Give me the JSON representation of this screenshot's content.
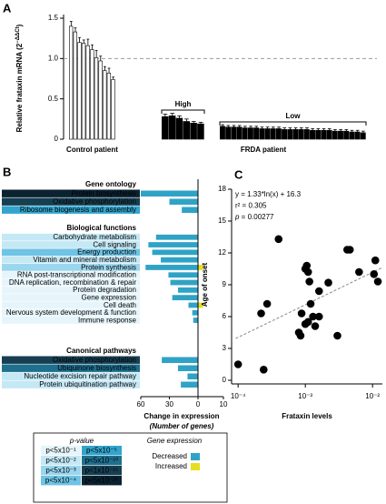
{
  "chart_data": [
    {
      "type": "bar",
      "panel": "A",
      "ylabel": [
        "Relative frataxin mRNA (2",
        "−ΔΔCt",
        ")"
      ],
      "ylim": [
        0,
        1.5
      ],
      "yticks": [
        0,
        0.5,
        {
          "value": 1,
          "label": "1.0"
        },
        1.5
      ],
      "reference_line": 1,
      "groups": [
        {
          "name": "Control patient",
          "color": "#ffffff",
          "values": [
            1.4,
            1.33,
            1.2,
            1.19,
            1.16,
            1.11,
            1.01,
            0.97,
            0.85,
            0.82,
            0.74
          ],
          "errors": [
            0.06,
            0.05,
            0.06,
            0.04,
            0.08,
            0.06,
            0.09,
            0.06,
            0.05,
            0.06,
            0.03
          ]
        },
        {
          "name": "High",
          "color": "#000000",
          "values": [
            0.28,
            0.29,
            0.26,
            0.22,
            0.2,
            0.19
          ],
          "errors": [
            0.03,
            0.03,
            0.03,
            0.03,
            0.02,
            0.02
          ]
        },
        {
          "name": "Low",
          "color": "#000000",
          "values": [
            0.16,
            0.15,
            0.15,
            0.15,
            0.14,
            0.14,
            0.14,
            0.13,
            0.13,
            0.13,
            0.13,
            0.12,
            0.12,
            0.12,
            0.12,
            0.12,
            0.11,
            0.11,
            0.11,
            0.11,
            0.1,
            0.1,
            0.1,
            0.09,
            0.09,
            0.08
          ],
          "errors": [
            0.02,
            0.02,
            0.02,
            0.02,
            0.02,
            0.02,
            0.02,
            0.02,
            0.02,
            0.02,
            0.02,
            0.02,
            0.02,
            0.02,
            0.02,
            0.02,
            0.02,
            0.02,
            0.02,
            0.02,
            0.02,
            0.02,
            0.02,
            0.02,
            0.02,
            0.02
          ]
        }
      ],
      "patient_label": "FRDA patient"
    },
    {
      "type": "diverging-bar",
      "panel": "B",
      "series": [
        {
          "name": "Decreased",
          "color": "#2fa3c6"
        },
        {
          "name": "Increased",
          "color": "#e6df1f"
        }
      ],
      "sections": [
        {
          "title": "Gene ontology",
          "rows": [
            {
              "label": "Protein biosynthesis",
              "color": "#0b2231",
              "values": [
                60,
                null
              ]
            },
            {
              "label": "Oxidative phosphorylation",
              "color": "#173f52",
              "values": [
                30,
                null
              ]
            },
            {
              "label": "Ribosome biogenesis and assembly",
              "color": "#31a5cd",
              "values": [
                17,
                null
              ]
            }
          ]
        },
        {
          "title": "Biological functions",
          "rows": [
            {
              "label": "Carbohydrate metabolism",
              "color": "#c5e8f5",
              "values": [
                44,
                null
              ]
            },
            {
              "label": "Cell signaling",
              "color": "#c5e8f5",
              "values": [
                52,
                null
              ]
            },
            {
              "label": "Energy production",
              "color": "#6fc3e4",
              "values": [
                48,
                null
              ]
            },
            {
              "label": "Vitamin and mineral metabolism",
              "color": "#c5e8f5",
              "values": [
                39,
                null
              ]
            },
            {
              "label": "Protein synthesis",
              "color": "#9ad6ee",
              "values": [
                55,
                2
              ]
            },
            {
              "label": "RNA post-transcriptional modification",
              "color": "#e6f5fb",
              "values": [
                31,
                null
              ]
            },
            {
              "label": "DNA replication, recombination & repair",
              "color": "#e6f5fb",
              "values": [
                29,
                null
              ]
            },
            {
              "label": "Protein degradation",
              "color": "#e6f5fb",
              "values": [
                21,
                null
              ]
            },
            {
              "label": "Gene expression",
              "color": "#e6f5fb",
              "values": [
                27,
                null
              ]
            },
            {
              "label": "Cell death",
              "color": "#e6f5fb",
              "values": [
                10,
                2
              ]
            },
            {
              "label": "Nervous system development & function",
              "color": "#e6f5fb",
              "values": [
                6,
                null
              ]
            },
            {
              "label": "Immune response",
              "color": "#e6f5fb",
              "values": [
                5,
                null
              ]
            }
          ]
        },
        {
          "title": "Canonical pathways",
          "rows": [
            {
              "label": "Oxidative phosphorylation",
              "color": "#173f52",
              "values": [
                38,
                null
              ]
            },
            {
              "label": "Ubiquinone biosynthesis",
              "color": "#1f6f8e",
              "values": [
                21,
                null
              ]
            },
            {
              "label": "Nucleotide excision repair pathway",
              "color": "#c5e8f5",
              "values": [
                11,
                null
              ]
            },
            {
              "label": "Protein ubiquitination pathway",
              "color": "#c5e8f5",
              "values": [
                18,
                null
              ]
            }
          ]
        }
      ],
      "xlim": [
        0,
        60
      ],
      "xticks": [
        60,
        30,
        0
      ],
      "xlim_increased": [
        0,
        10
      ],
      "xticks_increased": [
        10
      ],
      "xlabel": "Change in expression",
      "xlabel2": "(Number of genes)",
      "pvalue_legend": {
        "title": "p-value",
        "levels": [
          {
            "label": "p<5x10⁻¹",
            "color": "#e6f5fb"
          },
          {
            "label": "p<5x10⁻²",
            "color": "#c5e8f5"
          },
          {
            "label": "p<5x10⁻³",
            "color": "#9ad6ee"
          },
          {
            "label": "p<5x10⁻⁴",
            "color": "#6fc3e4"
          },
          {
            "label": "p<5x10⁻⁵",
            "color": "#31a5cd"
          },
          {
            "label": "p<5x10⁻¹⁰",
            "color": "#1f6f8e"
          },
          {
            "label": "p<1x10⁻¹⁵",
            "color": "#173f52"
          },
          {
            "label": "p<5x10⁻²⁰",
            "color": "#0b2231"
          }
        ]
      },
      "expression_legend_title": "Gene expression"
    },
    {
      "type": "scatter",
      "panel": "C",
      "xlabel": "Frataxin levels",
      "ylabel": "Age of onset",
      "xlog": true,
      "xlim": [
        8e-05,
        0.014
      ],
      "xticks": [
        {
          "value": 0.0001,
          "label": "10⁻⁴"
        },
        {
          "value": 0.001,
          "label": "10⁻³"
        },
        {
          "value": 0.01,
          "label": "10⁻²"
        }
      ],
      "ylim": [
        0,
        18
      ],
      "yticks": [
        0,
        3,
        6,
        9,
        12,
        15,
        18
      ],
      "x": [
        0.0001,
        0.00024,
        0.00022,
        0.00027,
        0.0004,
        0.0008,
        0.00085,
        0.00088,
        0.001,
        0.00105,
        0.0011,
        0.00115,
        0.0012,
        0.001,
        0.0011,
        0.0013,
        0.0014,
        0.0016,
        0.0016,
        0.0022,
        0.003,
        0.0042,
        0.0046,
        0.0063,
        0.011,
        0.0105,
        0.012
      ],
      "y": [
        1.5,
        1,
        6.3,
        7.2,
        13.3,
        4.5,
        4.2,
        6.3,
        10.5,
        10.8,
        10.2,
        9.3,
        7.2,
        5.3,
        5.5,
        6,
        5.1,
        6,
        8.4,
        9.2,
        4.2,
        12.3,
        12.3,
        10.2,
        11.3,
        10,
        9.3
      ],
      "color": "#000000",
      "fit": {
        "slope": 1.33,
        "intercept": 16.3
      },
      "annotations": [
        [
          "y = 1.33*ln(x) + 16.3"
        ],
        [
          "r² = 0.305"
        ],
        [
          "p",
          " = 0.00277"
        ]
      ]
    }
  ]
}
